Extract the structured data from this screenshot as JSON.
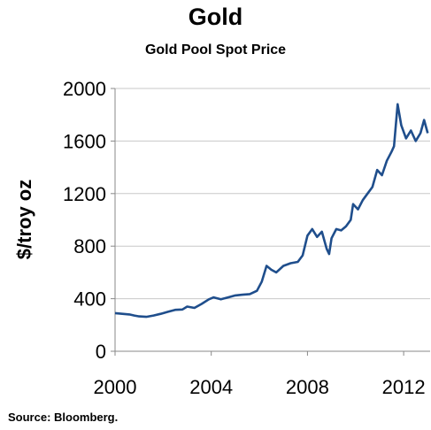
{
  "chart_data": {
    "type": "line",
    "title": "Gold",
    "subtitle": "Gold Pool Spot Price",
    "ylabel": "$/troy oz",
    "xlabel": "",
    "source": "Source: Bloomberg.",
    "xlim": [
      2000,
      2013.1
    ],
    "ylim": [
      0,
      2000
    ],
    "xticks": [
      2000,
      2004,
      2008,
      2012
    ],
    "yticks": [
      0,
      400,
      800,
      1200,
      1600,
      2000
    ],
    "grid": "horizontal",
    "line_color": "#1f4e8c",
    "series": [
      {
        "x": [
          2000.0,
          2000.3,
          2000.6,
          2000.8,
          2001.0,
          2001.3,
          2001.6,
          2001.9,
          2002.2,
          2002.5,
          2002.8,
          2003.0,
          2003.3,
          2003.6,
          2003.9,
          2004.1,
          2004.4,
          2004.7,
          2005.0,
          2005.3,
          2005.6,
          2005.9,
          2006.1,
          2006.3,
          2006.5,
          2006.7,
          2007.0,
          2007.3,
          2007.6,
          2007.8,
          2008.0,
          2008.2,
          2008.4,
          2008.6,
          2008.8,
          2008.9,
          2009.0,
          2009.2,
          2009.4,
          2009.6,
          2009.8,
          2009.9,
          2010.1,
          2010.3,
          2010.5,
          2010.7,
          2010.9,
          2011.1,
          2011.3,
          2011.5,
          2011.6,
          2011.75,
          2011.9,
          2012.1,
          2012.3,
          2012.5,
          2012.7,
          2012.85,
          2013.0
        ],
        "y": [
          290,
          285,
          280,
          272,
          265,
          262,
          272,
          285,
          300,
          315,
          318,
          340,
          330,
          360,
          395,
          410,
          395,
          410,
          425,
          430,
          435,
          460,
          530,
          650,
          620,
          600,
          650,
          670,
          680,
          730,
          880,
          930,
          870,
          910,
          780,
          740,
          860,
          930,
          920,
          950,
          1000,
          1120,
          1080,
          1150,
          1200,
          1250,
          1380,
          1340,
          1450,
          1520,
          1560,
          1880,
          1720,
          1620,
          1680,
          1600,
          1660,
          1760,
          1660
        ]
      }
    ]
  }
}
